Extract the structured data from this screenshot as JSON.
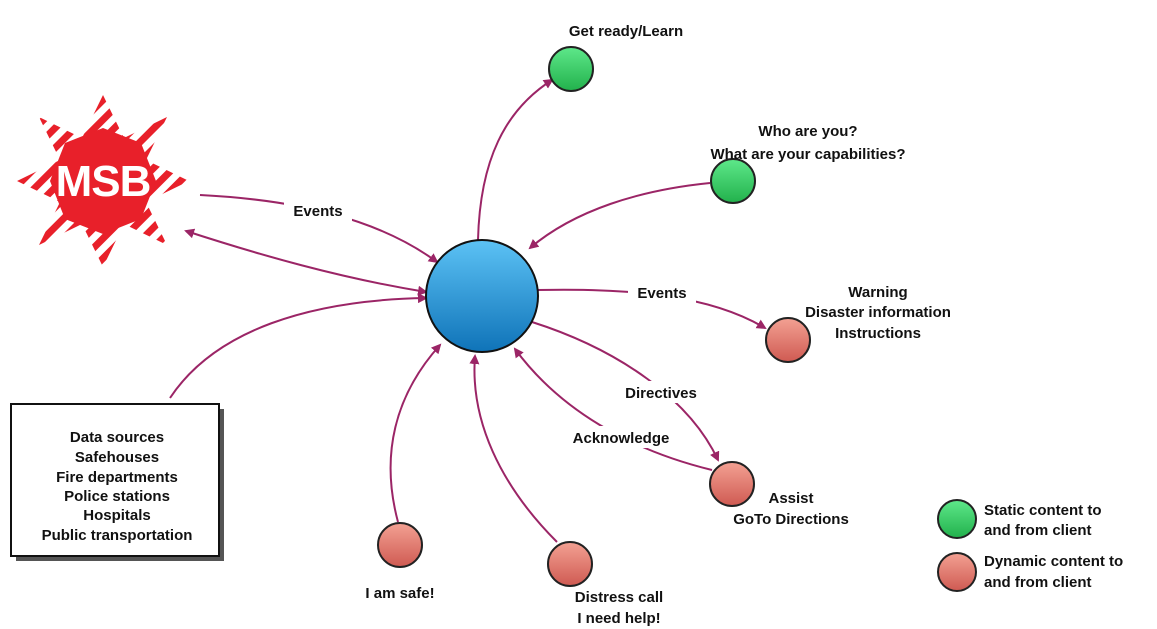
{
  "colors": {
    "arrow": "#9b2566",
    "hub": "#1b8fd6",
    "static_node": "#2fd060",
    "dynamic_node": "#e2786c",
    "logo_red": "#e8202a"
  },
  "logo": {
    "text": "MSB"
  },
  "nodes": {
    "get_ready": {
      "label": "Get ready/Learn",
      "type": "static"
    },
    "who_are_you": {
      "label_line1": "Who are you?",
      "label_line2": "What are your capabilities?",
      "type": "static"
    },
    "warning": {
      "label_line1": "Warning",
      "label_line2": "Disaster information",
      "label_line3": "Instructions",
      "type": "dynamic"
    },
    "assist": {
      "label_line1": "Assist",
      "label_line2": "GoTo Directions",
      "type": "dynamic"
    },
    "i_am_safe": {
      "label": "I am safe!",
      "type": "dynamic"
    },
    "distress": {
      "label_line1": "Distress call",
      "label_line2": "I need help!",
      "type": "dynamic"
    }
  },
  "data_sources_box": {
    "lines": [
      "Data sources",
      "Safehouses",
      "Fire departments",
      "Police stations",
      "Hospitals",
      "Public transportation"
    ]
  },
  "edges": {
    "msb_events": "Events",
    "hub_events": "Events",
    "directives": "Directives",
    "acknowledge": "Acknowledge"
  },
  "legend": {
    "static_line1": "Static content to",
    "static_line2": "and from client",
    "dynamic_line1": "Dynamic content to",
    "dynamic_line2": "and from client"
  }
}
